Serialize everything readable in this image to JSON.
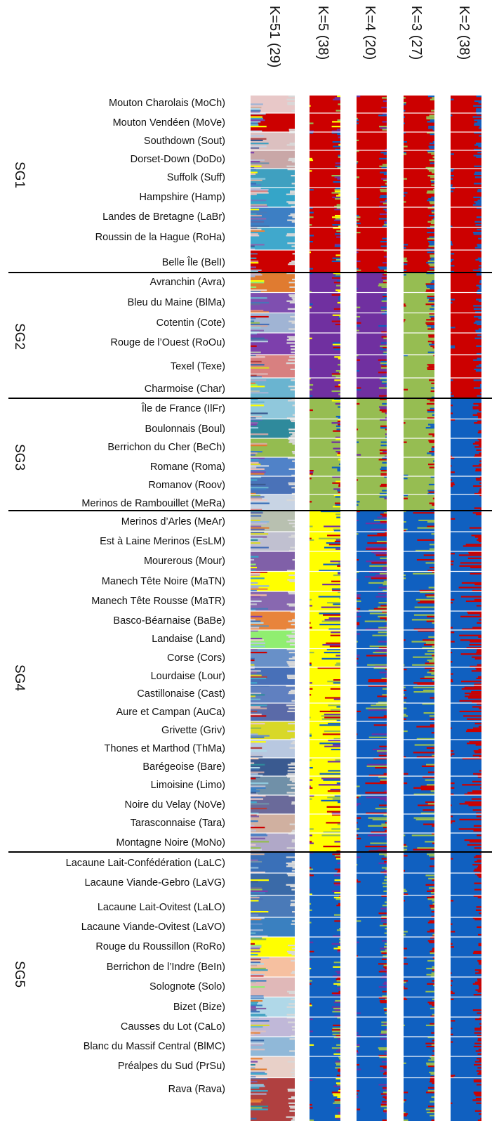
{
  "chart_data": {
    "type": "bar",
    "subtype": "admixture structure plot (stacked, vertical)",
    "panels": [
      {
        "label": "K=51 (29)",
        "K": 51,
        "runs": 29
      },
      {
        "label": "K=5 (38)",
        "K": 5,
        "runs": 38
      },
      {
        "label": "K=4 (20)",
        "K": 4,
        "runs": 20
      },
      {
        "label": "K=3 (27)",
        "K": 3,
        "runs": 27
      },
      {
        "label": "K=2 (38)",
        "K": 2,
        "runs": 38
      }
    ],
    "groups": [
      {
        "label": "SG1",
        "breeds": [
          "Mouton Charolais (MoCh)",
          "Mouton Vendéen (MoVe)",
          "Southdown (Sout)",
          "Dorset-Down (DoDo)",
          "Suffolk (Suff)",
          "Hampshire (Hamp)",
          "Landes de Bretagne (LaBr)",
          "Roussin de la Hague (RoHa)",
          "Belle Île (BelI)"
        ]
      },
      {
        "label": "SG2",
        "breeds": [
          "Avranchin (Avra)",
          "Bleu du Maine (BlMa)",
          "Cotentin (Cote)",
          "Rouge de l’Ouest (RoOu)",
          "Texel (Texe)",
          "Charmoise (Char)"
        ]
      },
      {
        "label": "SG3",
        "breeds": [
          "Île de France (IlFr)",
          "Boulonnais (Boul)",
          "Berrichon du Cher (BeCh)",
          "Romane (Roma)",
          "Romanov (Roov)",
          "Merinos de Rambouillet (MeRa)"
        ]
      },
      {
        "label": "SG4",
        "breeds": [
          "Merinos d’Arles (MeAr)",
          "Est à Laine Merinos (EsLM)",
          "Mourerous (Mour)",
          "Manech Tête Noire (MaTN)",
          "Manech Tête Rousse (MaTR)",
          "Basco-Béarnaise (BaBe)",
          "Landaise (Land)",
          "Corse (Cors)",
          "Lourdaise (Lour)",
          "Castillonaise (Cast)",
          "Aure et Campan (AuCa)",
          "Grivette (Griv)",
          "Thones et Marthod (ThMa)",
          "Barégeoise (Bare)",
          "Limoisine (Limo)",
          "Noire du Velay (NoVe)",
          "Tarasconnaise (Tara)",
          "Montagne Noire (MoNo)"
        ]
      },
      {
        "label": "SG5",
        "breeds": [
          "Lacaune Lait-Confédération (LaLC)",
          "Lacaune Viande-Gebro (LaVG)",
          "Lacaune Lait-Ovitest (LaLO)",
          "Lacaune Viande-Ovitest (LaVO)",
          "Rouge du Roussillon (RoRo)",
          "Berrichon de l’Indre (BeIn)",
          "Solognote (Solo)",
          "Bizet (Bize)",
          "Causses du Lot (CaLo)",
          "Blanc du Massif Central (BlMC)",
          "Préalpes du Sud (PrSu)",
          "Rava (Rava)"
        ]
      }
    ],
    "cluster_colors": {
      "K2": {
        "1": "#cc0000",
        "2": "#1060c0"
      },
      "K3": {
        "1": "#cc0000",
        "2": "#96bd52",
        "3": "#1060c0"
      },
      "K4": {
        "1": "#cc0000",
        "2": "#7030a0",
        "3": "#96bd52",
        "4": "#1060c0"
      },
      "K5": {
        "1": "#cc0000",
        "2": "#7030a0",
        "3": "#96bd52",
        "4": "#ffff00",
        "5": "#1060c0"
      }
    },
    "dominant_cluster_by_group": {
      "SG1": {
        "K5": "red",
        "K4": "red",
        "K3": "red",
        "K2": "red"
      },
      "SG2": {
        "K5": "purple",
        "K4": "purple",
        "K3": "green",
        "K2": "red"
      },
      "SG3": {
        "K5": "green",
        "K4": "green",
        "K3": "green",
        "K2": "blue"
      },
      "SG4": {
        "K5": "yellow",
        "K4": "blue",
        "K3": "blue",
        "K2": "blue"
      },
      "SG5": {
        "K5": "blue",
        "K4": "blue",
        "K3": "blue",
        "K2": "blue"
      }
    },
    "k51_breed_colors": [
      "#e8c8c8",
      "#cc0000",
      "#dcc0c0",
      "#c9a7a7",
      "#3fa0c0",
      "#35a5c8",
      "#3d7fc4",
      "#40a8cc",
      "#cc0000",
      "#e07b30",
      "#7f4fb0",
      "#a0b4d4",
      "#7d40ac",
      "#d88080",
      "#6ab4d0",
      "#90c8dc",
      "#2f8a9c",
      "#94bc50",
      "#5082c8",
      "#4a72b8",
      "#c8d4e4",
      "#b8c0b0",
      "#c0c0d0",
      "#8060a8",
      "#ffff00",
      "#8868b0",
      "#e8843c",
      "#90ee70",
      "#6890c8",
      "#4870b8",
      "#6080c0",
      "#5a6aa8",
      "#d8d828",
      "#b8c8e0",
      "#3a5a90",
      "#7090a8",
      "#6a6a9a",
      "#d0b0a0",
      "#b0a8c8",
      "#3a70b8",
      "#3a6aa8",
      "#4a7ab8",
      "#3a80c0",
      "#ffff00",
      "#f6c0a0",
      "#e0b8b8",
      "#b0d8e8",
      "#c0b8d8",
      "#90b8d8",
      "#e8d0c8",
      "#b04040"
    ]
  }
}
